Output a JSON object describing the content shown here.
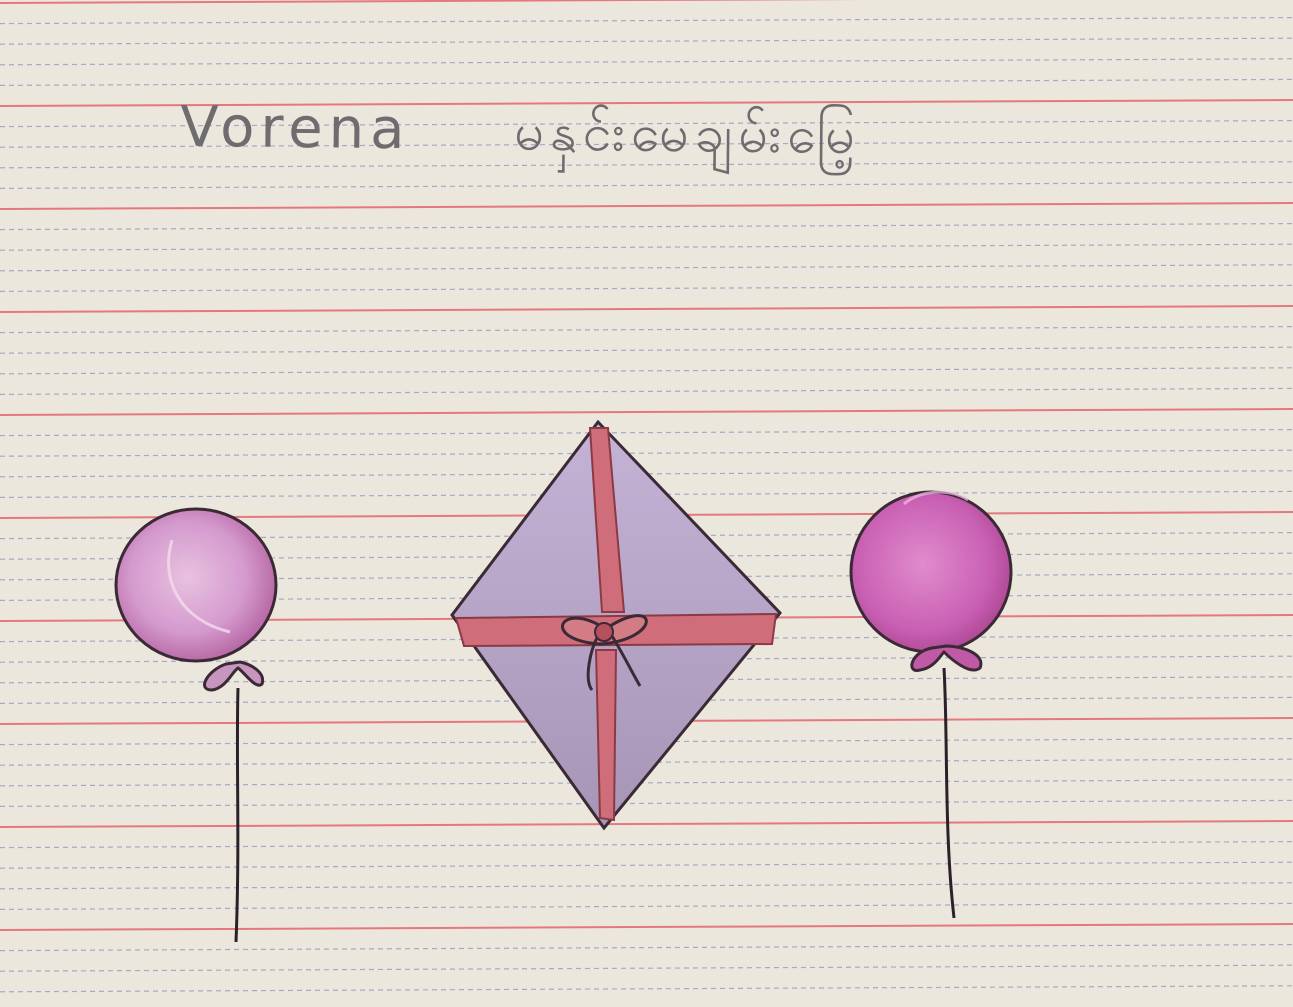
{
  "caption": {
    "name": "Vorena",
    "script": "မနှင်းမေချမ်းမြေ့"
  },
  "colors": {
    "paper": "#ece7dc",
    "red_rule": "#e4787e",
    "blue_rule": "#a3a9c6",
    "pencil": "#6f6c70",
    "balloon_left": "#d49ace",
    "balloon_right": "#c95fb3",
    "gift_fill": "#b8a6c9",
    "ribbon": "#c95a63",
    "outline": "#3b2a36"
  },
  "icons": [
    "balloon-left-icon",
    "gift-icon",
    "balloon-right-icon"
  ]
}
